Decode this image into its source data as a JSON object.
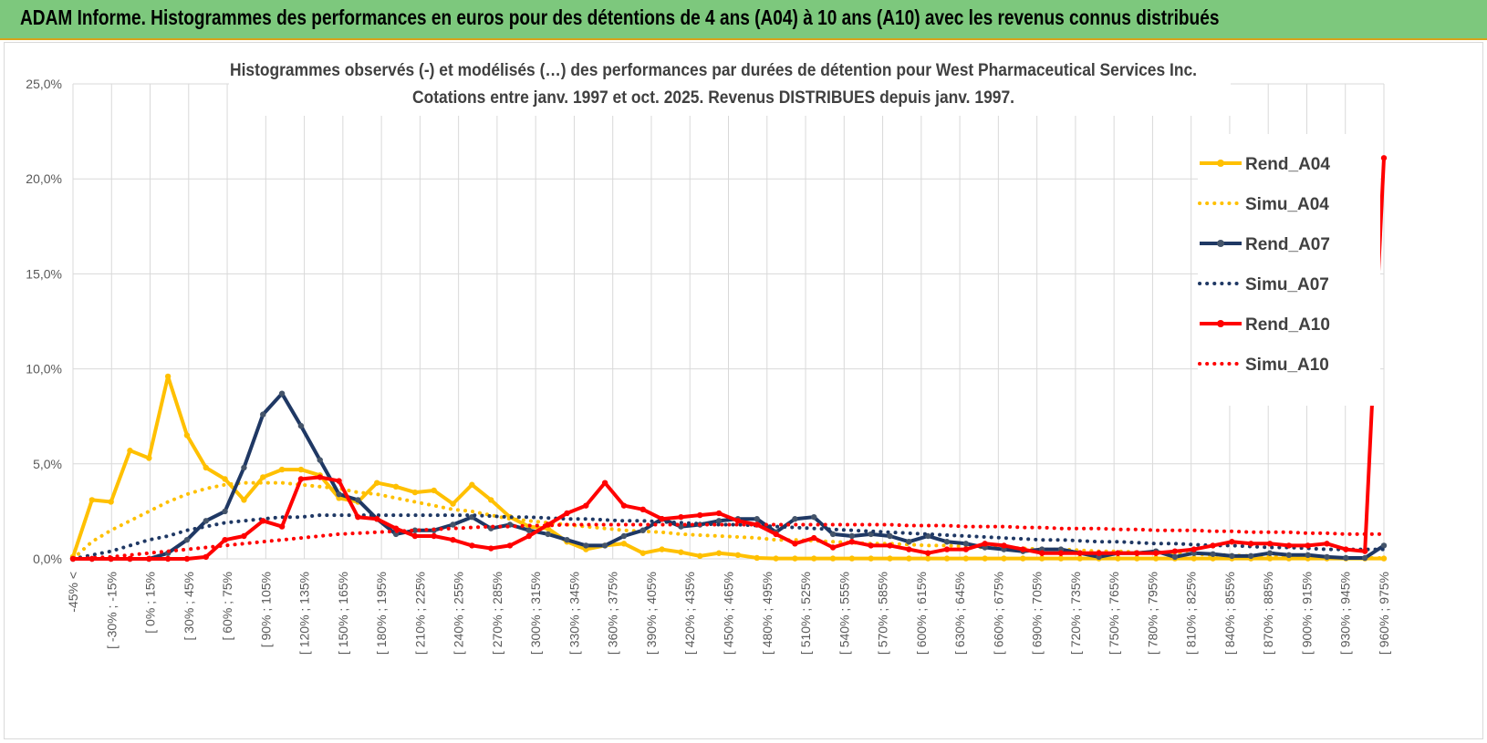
{
  "banner": {
    "title": "ADAM Informe. Histogrammes des performances en euros pour des détentions de 4 ans (A04) à 10 ans (A10) avec les revenus connus distribués"
  },
  "chart_data": {
    "type": "line",
    "title": "Histogrammes observés (-) et modélisés (…) des performances par durées de détention pour West Pharmaceutical Services Inc.",
    "subtitle": "Cotations entre janv. 1997 et oct. 2025.  Revenus DISTRIBUES depuis janv. 1997.",
    "ylim": [
      0,
      25
    ],
    "yticks": [
      "0,0%",
      "5,0%",
      "10,0%",
      "15,0%",
      "20,0%",
      "25,0%"
    ],
    "grid": true,
    "legend_position": "right",
    "x_labels": [
      "-45% <",
      "[ -30% ; -15%",
      "[ 0% ; 15%",
      "[ 30% ; 45%",
      "[ 60% ; 75%",
      "[ 90% ; 105%",
      "[ 120% ; 135%",
      "[ 150% ; 165%",
      "[ 180% ; 195%",
      "[ 210% ; 225%",
      "[ 240% ; 255%",
      "[ 270% ; 285%",
      "[ 300% ; 315%",
      "[ 330% ; 345%",
      "[ 360% ; 375%",
      "[ 390% ; 405%",
      "[ 420% ; 435%",
      "[ 450% ; 465%",
      "[ 480% ; 495%",
      "[ 510% ; 525%",
      "[ 540% ; 555%",
      "[ 570% ; 585%",
      "[ 600% ; 615%",
      "[ 630% ; 645%",
      "[ 660% ; 675%",
      "[ 690% ; 705%",
      "[ 720% ; 735%",
      "[ 750% ; 765%",
      "[ 780% ; 795%",
      "[ 810% ; 825%",
      "[ 840% ; 855%",
      "[ 870% ; 885%",
      "[ 900% ; 915%",
      "[ 930% ; 945%",
      "[ 960% ; 975%"
    ],
    "series": [
      {
        "name": "Rend_A04",
        "style": "solid",
        "color": "#ffc000",
        "values": [
          0.1,
          3.1,
          3.0,
          5.7,
          5.3,
          9.6,
          6.5,
          4.8,
          4.2,
          3.1,
          4.3,
          4.7,
          4.7,
          4.4,
          3.2,
          3.0,
          4.0,
          3.8,
          3.5,
          3.6,
          2.9,
          3.9,
          3.1,
          2.2,
          1.7,
          1.6,
          0.9,
          0.5,
          0.7,
          0.8,
          0.3,
          0.5,
          0.35,
          0.15,
          0.3,
          0.2,
          0.05,
          0.02,
          0.02,
          0.02,
          0.02,
          0.02,
          0.02,
          0.02,
          0.02,
          0.02,
          0.02,
          0.02,
          0.02,
          0.02,
          0.02,
          0.02,
          0.02,
          0.02,
          0.02,
          0.02,
          0.02,
          0.02,
          0.02,
          0.02,
          0.02,
          0.02,
          0.02,
          0.02,
          0.02,
          0.02,
          0.02,
          0.02,
          0.02,
          0.02
        ]
      },
      {
        "name": "Simu_A04",
        "style": "dotted",
        "color": "#ffc000",
        "values": [
          0.0,
          0.9,
          1.5,
          2.0,
          2.5,
          3.0,
          3.4,
          3.7,
          3.9,
          4.0,
          4.0,
          4.0,
          3.9,
          3.8,
          3.7,
          3.5,
          3.4,
          3.2,
          3.0,
          2.8,
          2.6,
          2.5,
          2.3,
          2.1,
          2.0,
          1.9,
          1.8,
          1.7,
          1.6,
          1.5,
          1.45,
          1.4,
          1.3,
          1.25,
          1.2,
          1.15,
          1.1,
          1.0,
          1.0,
          0.95,
          0.9,
          0.85,
          0.8,
          0.8,
          0.75,
          0.7,
          0.7,
          0.65,
          0.6,
          0.6,
          0.55,
          0.5,
          0.5,
          0.45,
          0.4,
          0.4,
          0.35,
          0.3,
          0.3,
          0.25,
          0.2,
          0.2,
          0.15,
          0.15,
          0.1,
          0.1,
          0.05,
          0.05,
          0.05,
          0.05
        ]
      },
      {
        "name": "Rend_A07",
        "style": "solid",
        "color": "#1f3864",
        "values": [
          0.0,
          0.0,
          0.0,
          0.0,
          0.0,
          0.3,
          1.0,
          2.0,
          2.5,
          4.8,
          7.6,
          8.7,
          7.0,
          5.2,
          3.4,
          3.1,
          2.1,
          1.3,
          1.5,
          1.5,
          1.8,
          2.2,
          1.6,
          1.8,
          1.5,
          1.3,
          1.0,
          0.7,
          0.7,
          1.2,
          1.5,
          2.1,
          1.7,
          1.8,
          2.0,
          2.1,
          2.1,
          1.4,
          2.1,
          2.2,
          1.3,
          1.2,
          1.3,
          1.2,
          0.9,
          1.2,
          0.9,
          0.8,
          0.6,
          0.5,
          0.4,
          0.5,
          0.5,
          0.3,
          0.1,
          0.3,
          0.3,
          0.4,
          0.1,
          0.3,
          0.25,
          0.15,
          0.15,
          0.3,
          0.2,
          0.2,
          0.1,
          0.05,
          0.05,
          0.7
        ]
      },
      {
        "name": "Simu_A07",
        "style": "dotted",
        "color": "#1f3864",
        "values": [
          0.0,
          0.2,
          0.4,
          0.7,
          1.0,
          1.2,
          1.5,
          1.7,
          1.9,
          2.0,
          2.1,
          2.2,
          2.2,
          2.3,
          2.3,
          2.3,
          2.3,
          2.3,
          2.3,
          2.3,
          2.3,
          2.3,
          2.25,
          2.2,
          2.2,
          2.15,
          2.1,
          2.1,
          2.05,
          2.0,
          2.0,
          1.95,
          1.9,
          1.85,
          1.8,
          1.8,
          1.75,
          1.7,
          1.65,
          1.6,
          1.55,
          1.5,
          1.45,
          1.4,
          1.35,
          1.3,
          1.25,
          1.2,
          1.15,
          1.1,
          1.05,
          1.0,
          1.0,
          0.95,
          0.9,
          0.9,
          0.85,
          0.8,
          0.8,
          0.75,
          0.7,
          0.7,
          0.65,
          0.6,
          0.6,
          0.55,
          0.5,
          0.5,
          0.5,
          0.5
        ]
      },
      {
        "name": "Rend_A10",
        "style": "solid",
        "color": "#ff0000",
        "values": [
          0.0,
          0.0,
          0.0,
          0.0,
          0.0,
          0.0,
          0.0,
          0.1,
          1.0,
          1.2,
          2.0,
          1.7,
          4.2,
          4.3,
          4.1,
          2.2,
          2.1,
          1.6,
          1.2,
          1.2,
          1.0,
          0.7,
          0.55,
          0.7,
          1.2,
          1.8,
          2.4,
          2.8,
          4.0,
          2.8,
          2.6,
          2.1,
          2.2,
          2.3,
          2.4,
          2.0,
          1.8,
          1.3,
          0.8,
          1.1,
          0.6,
          0.9,
          0.7,
          0.7,
          0.5,
          0.3,
          0.5,
          0.5,
          0.8,
          0.7,
          0.5,
          0.3,
          0.3,
          0.3,
          0.3,
          0.3,
          0.3,
          0.3,
          0.4,
          0.5,
          0.7,
          0.9,
          0.8,
          0.8,
          0.7,
          0.7,
          0.8,
          0.5,
          0.4,
          21.1
        ]
      },
      {
        "name": "Simu_A10",
        "style": "dotted",
        "color": "#ff0000",
        "values": [
          0.0,
          0.05,
          0.1,
          0.2,
          0.3,
          0.4,
          0.5,
          0.6,
          0.7,
          0.8,
          0.9,
          1.0,
          1.1,
          1.2,
          1.3,
          1.35,
          1.4,
          1.45,
          1.5,
          1.55,
          1.6,
          1.65,
          1.7,
          1.7,
          1.75,
          1.75,
          1.8,
          1.8,
          1.8,
          1.8,
          1.8,
          1.8,
          1.8,
          1.8,
          1.8,
          1.8,
          1.8,
          1.8,
          1.8,
          1.8,
          1.8,
          1.8,
          1.8,
          1.8,
          1.75,
          1.75,
          1.75,
          1.7,
          1.7,
          1.7,
          1.65,
          1.65,
          1.6,
          1.6,
          1.6,
          1.55,
          1.55,
          1.5,
          1.5,
          1.5,
          1.45,
          1.45,
          1.4,
          1.4,
          1.4,
          1.35,
          1.35,
          1.3,
          1.3,
          1.3
        ]
      }
    ]
  }
}
